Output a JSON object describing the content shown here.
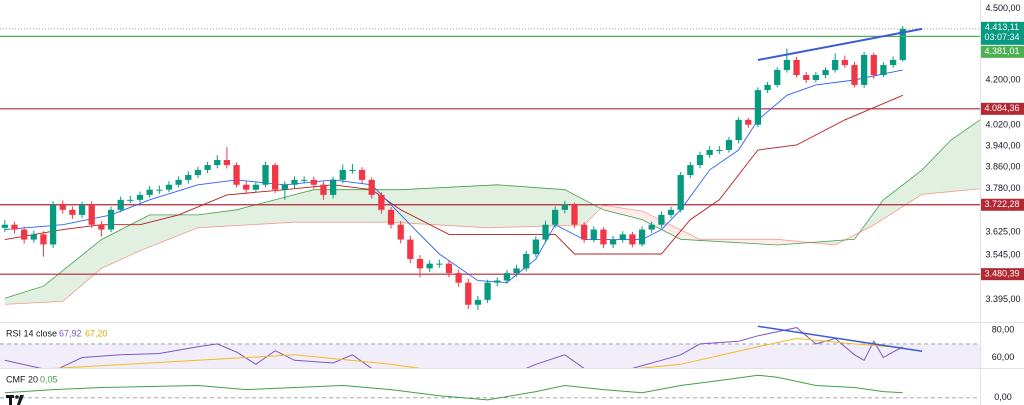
{
  "chart_data": [
    {
      "type": "candlestick",
      "xlim": [
        -0.5,
        101
      ],
      "ylim": [
        3323,
        4538
      ],
      "log_scale": true,
      "grid": false,
      "up_color": "#089981",
      "down_color": "#f23645",
      "yticks": [
        {
          "value": 4500,
          "label": "4.500,00"
        },
        {
          "value": 4200,
          "label": "4.200,00"
        },
        {
          "value": 4020,
          "label": "4.020,00"
        },
        {
          "value": 3940,
          "label": "3.940,00"
        },
        {
          "value": 3860,
          "label": "3.860,00"
        },
        {
          "value": 3780,
          "label": "3.780,00"
        },
        {
          "value": 3625,
          "label": "3.625,00"
        },
        {
          "value": 3545,
          "label": "3.545,00"
        },
        {
          "value": 3395,
          "label": "3.395,00"
        }
      ],
      "open": [
        3640,
        3651,
        3634,
        3599,
        3617,
        3582,
        3722,
        3704,
        3686,
        3722,
        3651,
        3634,
        3704,
        3740,
        3740,
        3758,
        3777,
        3777,
        3795,
        3813,
        3831,
        3850,
        3868,
        3887,
        3868,
        3795,
        3777,
        3795,
        3868,
        3777,
        3795,
        3813,
        3813,
        3795,
        3758,
        3813,
        3850,
        3850,
        3813,
        3758,
        3704,
        3651,
        3599,
        3532,
        3500,
        3516,
        3516,
        3484,
        3452,
        3379,
        3395,
        3452,
        3459,
        3484,
        3500,
        3549,
        3599,
        3651,
        3704,
        3722,
        3651,
        3599,
        3634,
        3582,
        3599,
        3617,
        3582,
        3634,
        3651,
        3686,
        3704,
        3831,
        3868,
        3906,
        3925,
        3925,
        3963,
        4041,
        4022,
        4159,
        4180,
        4241,
        4282,
        4220,
        4200,
        4220,
        4241,
        4282,
        4261,
        4180,
        4303,
        4220,
        4261,
        4282
      ],
      "high": [
        3668,
        3662,
        3645,
        3630,
        3628,
        3735,
        3738,
        3716,
        3733,
        3735,
        3665,
        3716,
        3752,
        3755,
        3770,
        3790,
        3792,
        3808,
        3826,
        3845,
        3862,
        3880,
        3905,
        3935,
        3878,
        3808,
        3806,
        3880,
        3876,
        3808,
        3826,
        3826,
        3825,
        3806,
        3825,
        3870,
        3872,
        3860,
        3822,
        3768,
        3714,
        3664,
        3612,
        3545,
        3528,
        3530,
        3528,
        3495,
        3465,
        3408,
        3462,
        3470,
        3495,
        3512,
        3560,
        3610,
        3665,
        3716,
        3736,
        3730,
        3660,
        3645,
        3642,
        3612,
        3628,
        3626,
        3645,
        3662,
        3698,
        3715,
        3842,
        3880,
        3918,
        3940,
        3940,
        3975,
        4052,
        4050,
        4170,
        4192,
        4252,
        4330,
        4295,
        4232,
        4232,
        4252,
        4310,
        4300,
        4275,
        4315,
        4312,
        4272,
        4296,
        4425
      ],
      "low": [
        3625,
        3620,
        3585,
        3588,
        3540,
        3570,
        3690,
        3672,
        3675,
        3640,
        3610,
        3625,
        3695,
        3728,
        3730,
        3748,
        3762,
        3768,
        3785,
        3800,
        3820,
        3838,
        3856,
        3855,
        3785,
        3762,
        3768,
        3786,
        3765,
        3740,
        3782,
        3800,
        3780,
        3740,
        3745,
        3800,
        3836,
        3800,
        3745,
        3690,
        3638,
        3586,
        3518,
        3470,
        3488,
        3502,
        3470,
        3438,
        3365,
        3362,
        3385,
        3440,
        3448,
        3472,
        3490,
        3540,
        3588,
        3640,
        3692,
        3640,
        3588,
        3590,
        3570,
        3570,
        3588,
        3572,
        3575,
        3622,
        3640,
        3675,
        3695,
        3820,
        3856,
        3895,
        3910,
        3915,
        3950,
        4010,
        4012,
        4148,
        4170,
        4230,
        4210,
        4188,
        4190,
        4208,
        4230,
        4250,
        4170,
        4168,
        4205,
        4212,
        4250,
        4275
      ],
      "close": [
        3651,
        3634,
        3599,
        3617,
        3582,
        3722,
        3704,
        3686,
        3722,
        3651,
        3634,
        3704,
        3740,
        3740,
        3758,
        3777,
        3777,
        3795,
        3813,
        3831,
        3850,
        3868,
        3887,
        3868,
        3795,
        3777,
        3795,
        3868,
        3777,
        3795,
        3813,
        3813,
        3795,
        3758,
        3813,
        3850,
        3850,
        3813,
        3758,
        3704,
        3651,
        3599,
        3532,
        3500,
        3516,
        3516,
        3484,
        3452,
        3379,
        3395,
        3452,
        3459,
        3484,
        3500,
        3549,
        3599,
        3651,
        3704,
        3722,
        3651,
        3599,
        3634,
        3582,
        3599,
        3617,
        3582,
        3634,
        3651,
        3686,
        3704,
        3831,
        3868,
        3906,
        3925,
        3925,
        3963,
        4041,
        4022,
        4159,
        4180,
        4241,
        4282,
        4220,
        4200,
        4220,
        4241,
        4282,
        4261,
        4180,
        4303,
        4220,
        4261,
        4282,
        4413.11
      ],
      "tenkan": {
        "color": "#2962ff",
        "x": [
          0,
          6,
          11,
          15,
          20,
          24,
          29,
          34,
          38,
          42,
          45,
          49,
          52,
          55,
          57,
          60,
          66,
          68,
          70,
          73,
          76,
          78,
          81,
          84,
          88,
          93
        ],
        "values": [
          3634,
          3651,
          3686,
          3740,
          3795,
          3813,
          3795,
          3813,
          3795,
          3651,
          3549,
          3459,
          3452,
          3532,
          3651,
          3599,
          3599,
          3634,
          3704,
          3850,
          3925,
          4041,
          4138,
          4180,
          4200,
          4241
        ]
      },
      "kijun": {
        "color": "#b71c1c",
        "x": [
          0,
          6,
          10,
          14,
          18,
          23,
          29,
          34,
          38,
          41,
          46,
          57,
          59,
          68,
          71,
          74,
          78,
          82,
          87,
          93
        ],
        "values": [
          3599,
          3634,
          3651,
          3651,
          3686,
          3758,
          3777,
          3795,
          3777,
          3704,
          3617,
          3617,
          3549,
          3549,
          3669,
          3740,
          3925,
          3944,
          4041,
          4138
        ]
      },
      "cloud": {
        "up_color": "#43a047",
        "down_color": "#f44336",
        "span_a": {
          "x": [
            0,
            4,
            10,
            15,
            20,
            24,
            32,
            41,
            51,
            58,
            62,
            66,
            70,
            80,
            88,
            91,
            95,
            98,
            101
          ],
          "values": [
            3400,
            3440,
            3599,
            3686,
            3686,
            3704,
            3777,
            3777,
            3795,
            3777,
            3704,
            3669,
            3600,
            3580,
            3600,
            3740,
            3850,
            3963,
            4041
          ]
        },
        "span_b": {
          "x": [
            0,
            6,
            10,
            14,
            20,
            30,
            40,
            50,
            60,
            62,
            66,
            72,
            80,
            86,
            90,
            95,
            101
          ],
          "values": [
            3380,
            3390,
            3500,
            3560,
            3640,
            3660,
            3660,
            3640,
            3650,
            3720,
            3700,
            3600,
            3600,
            3580,
            3650,
            3760,
            3780
          ]
        }
      },
      "horizontal_lines": [
        {
          "value": 4084.36,
          "label": "4.084,36",
          "color": "#b22833"
        },
        {
          "value": 3722.28,
          "label": "3.722,28",
          "color": "#b22833"
        },
        {
          "value": 3480.39,
          "label": "3.480,39",
          "color": "#b22833"
        }
      ],
      "support_line": {
        "value": 4381.01,
        "label": "4.381,01",
        "color": "#4caf50"
      },
      "price_tag": {
        "value": 4413.11,
        "label": "4.413,11",
        "countdown": "03:07:34",
        "color": "#089981"
      },
      "trendline": {
        "color": "#3a5bd9",
        "x": [
          78,
          95
        ],
        "values": [
          4282,
          4413
        ]
      }
    },
    {
      "type": "line",
      "title": "RSI 14 close",
      "xlim": [
        -0.5,
        101
      ],
      "ylim": [
        52.3,
        85.4
      ],
      "upper_band": 70,
      "yticks": [
        {
          "value": 80,
          "label": "80,00"
        },
        {
          "value": 60,
          "label": "60,00"
        }
      ],
      "series": [
        {
          "color": "#7e57c2",
          "last": {
            "value": 67.92,
            "label": "67,92"
          },
          "x": [
            0,
            5,
            8,
            12,
            16,
            20,
            22,
            24,
            26,
            28,
            30,
            34,
            36,
            38,
            40,
            50,
            55,
            58,
            60,
            64,
            68,
            70,
            72,
            76,
            78,
            80,
            82,
            84,
            86,
            88,
            89,
            90,
            91,
            92,
            93
          ],
          "values": [
            58,
            50,
            60,
            62,
            63,
            68,
            70,
            64,
            55,
            65,
            58,
            56,
            62,
            52,
            45,
            40,
            55,
            62,
            52,
            50,
            58,
            62,
            70,
            72,
            76,
            79,
            82,
            70,
            74,
            62,
            58,
            72,
            60,
            64,
            67.92
          ]
        },
        {
          "color": "#f5b921",
          "last": {
            "value": 67.2,
            "label": "67,20"
          },
          "x": [
            0,
            20,
            30,
            40,
            50,
            60,
            70,
            78,
            82,
            88,
            93
          ],
          "values": [
            50,
            58,
            62,
            55,
            45,
            48,
            55,
            68,
            74,
            70,
            67.2
          ]
        }
      ],
      "trendline": {
        "color": "#3a5bd9",
        "x": [
          78,
          95
        ],
        "values": [
          83,
          64.6
        ]
      }
    },
    {
      "type": "line",
      "title": "CMF 20",
      "xlim": [
        -0.5,
        101
      ],
      "ylim": [
        -0.07,
        0.28
      ],
      "yticks": [
        {
          "value": 0,
          "label": "0,00"
        }
      ],
      "series": [
        {
          "color": "#43a047",
          "last": {
            "value": 0.05,
            "label": "0,05"
          },
          "x": [
            0,
            5,
            10,
            20,
            25,
            30,
            35,
            40,
            45,
            50,
            55,
            58,
            62,
            66,
            70,
            75,
            78,
            80,
            84,
            88,
            91,
            93
          ],
          "values": [
            0.05,
            0.08,
            0.1,
            0.12,
            0.08,
            0.1,
            0.12,
            0.08,
            0.02,
            -0.02,
            0.06,
            0.12,
            0.08,
            0.05,
            0.12,
            0.18,
            0.22,
            0.2,
            0.12,
            0.1,
            0.06,
            0.05
          ]
        }
      ]
    }
  ]
}
